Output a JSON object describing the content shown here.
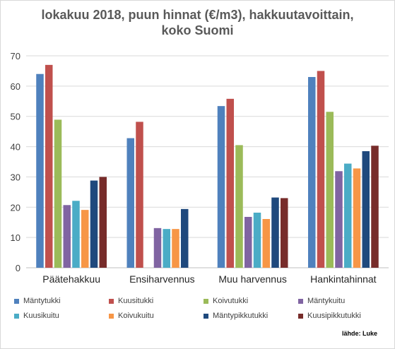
{
  "chart_data": {
    "type": "bar",
    "title_lines": [
      "lokakuu 2018, puun hinnat (€/m3), hakkuutavoittain,",
      "koko Suomi"
    ],
    "categories": [
      "Päätehakkuu",
      "Ensiharvennus",
      "Muu harvennus",
      "Hankintahinnat"
    ],
    "ylim": [
      0,
      70
    ],
    "yticks": [
      0,
      10,
      20,
      30,
      40,
      50,
      60,
      70
    ],
    "grid": true,
    "legend_position": "bottom",
    "series": [
      {
        "name": "Mäntytukki",
        "color": "#4f81bd",
        "values": [
          64,
          42.8,
          53.4,
          63
        ]
      },
      {
        "name": "Kuusitukki",
        "color": "#c0504d",
        "values": [
          67,
          48.2,
          55.8,
          65
        ]
      },
      {
        "name": "Koivutukki",
        "color": "#9bbb59",
        "values": [
          48.9,
          null,
          40.5,
          51.5
        ]
      },
      {
        "name": "Mäntykuitu",
        "color": "#8064a2",
        "values": [
          20.7,
          13.1,
          16.8,
          31.9
        ]
      },
      {
        "name": "Kuusikuitu",
        "color": "#4bacc6",
        "values": [
          22.1,
          12.8,
          18.2,
          34.4
        ]
      },
      {
        "name": "Koivukuitu",
        "color": "#f79646",
        "values": [
          19.1,
          12.8,
          16.1,
          32.8
        ]
      },
      {
        "name": "Mäntypikkutukki",
        "color": "#1f497d",
        "values": [
          28.8,
          19.4,
          23.2,
          38.5
        ]
      },
      {
        "name": "Kuusipikkutukki",
        "color": "#772c2a",
        "values": [
          30,
          null,
          23,
          40.3
        ]
      }
    ],
    "source": "lähde: Luke"
  }
}
